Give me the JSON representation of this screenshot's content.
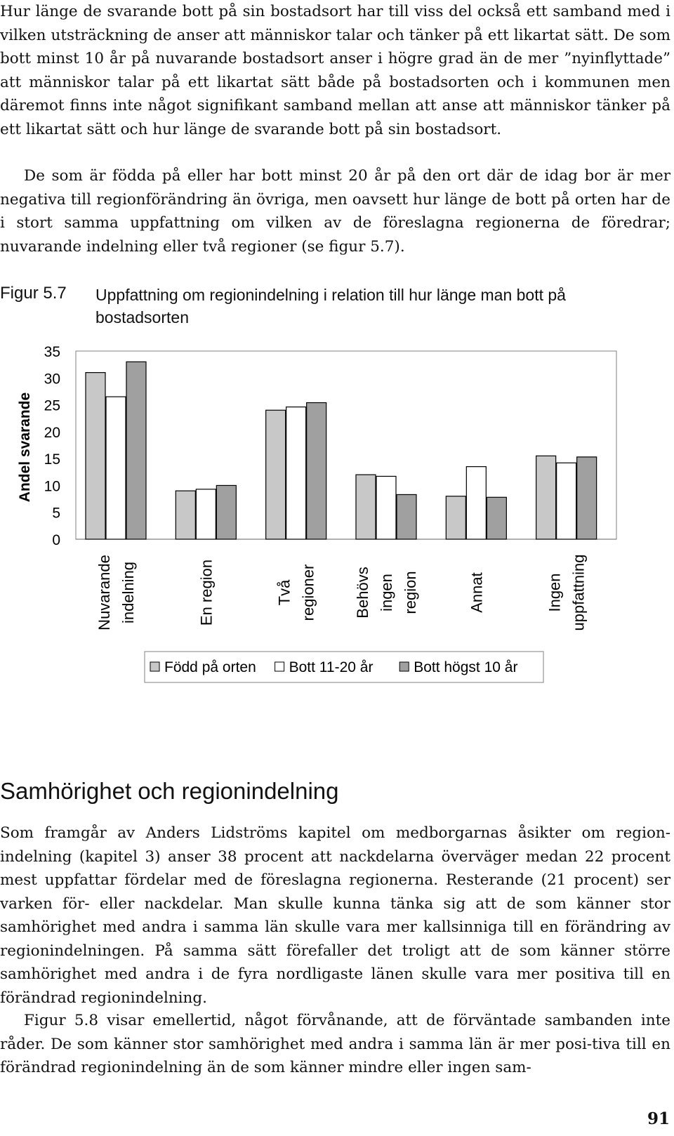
{
  "paragraphs": {
    "p1": "Hur länge de svarande bott på sin bostadsort har till viss del också ett samband med i vilken utsträckning de anser att människor talar och tänker på ett likartat sätt. De som bott minst 10 år på nuvarande bostadsort anser i högre grad än de mer ”nyinflyttade” att människor talar på ett likartat sätt både på bostadsorten och i kommunen men däremot finns inte något signifikant samband mellan att anse att människor tänker på ett likartat sätt och hur länge de svarande bott på sin bostadsort.",
    "p2": "De som är födda på eller har bott minst 20 år på den ort där de idag bor är mer negativa till regionförändring än övriga, men oavsett hur länge de bott på orten har de i stort samma uppfattning om vilken av de föreslagna regionerna de föredrar; nuvarande indelning eller två regioner (se figur 5.7).",
    "p3": "Som framgår av Anders Lidströms kapitel om medborgarnas åsikter om region-indelning (kapitel 3) anser 38 procent att nackdelarna överväger medan 22 procent mest uppfattar fördelar med de föreslagna regionerna. Resterande (21 procent) ser varken för- eller nackdelar. Man skulle kunna tänka sig att de som känner stor samhörighet med andra i samma län skulle vara mer kallsinniga till en förändring av regionindelningen. På samma sätt förefaller det troligt att de som känner större samhörighet med andra i de fyra nordligaste länen skulle vara mer positiva till en förändrad regionindelning.",
    "p4": "Figur 5.8 visar emellertid, något förvånande, att de förväntade sambanden inte råder. De som känner stor samhörighet med andra i samma län är mer posi-tiva till en förändrad regionindelning än de som känner mindre eller ingen sam-"
  },
  "figure": {
    "label": "Figur 5.7",
    "caption": "Uppfattning om regionindelning i relation till hur länge man bott på bostadsorten"
  },
  "chart_data": {
    "type": "bar",
    "ylabel": "Andel svarande",
    "ylim": [
      0,
      35
    ],
    "yticks": [
      0,
      5,
      10,
      15,
      20,
      25,
      30,
      35
    ],
    "categories": [
      [
        "Nuvarande",
        "indelning"
      ],
      [
        "En region"
      ],
      [
        "Två",
        "regioner"
      ],
      [
        "Behövs",
        "ingen",
        "region"
      ],
      [
        "Annat"
      ],
      [
        "Ingen",
        "uppfattning"
      ]
    ],
    "series": [
      {
        "name": "Född på orten",
        "color": "#c8c8c8",
        "values": [
          31,
          9,
          24,
          12,
          8,
          15.5
        ]
      },
      {
        "name": "Bott 11-20 år",
        "color": "#ffffff",
        "values": [
          26.5,
          9.3,
          24.6,
          11.7,
          13.5,
          14.2
        ]
      },
      {
        "name": "Bott högst 10 år",
        "color": "#a0a0a0",
        "values": [
          33,
          10,
          25.4,
          8.3,
          7.8,
          15.3
        ]
      }
    ],
    "legend_position": "bottom"
  },
  "section": {
    "heading": "Samhörighet och regionindelning"
  },
  "page_number": "91"
}
